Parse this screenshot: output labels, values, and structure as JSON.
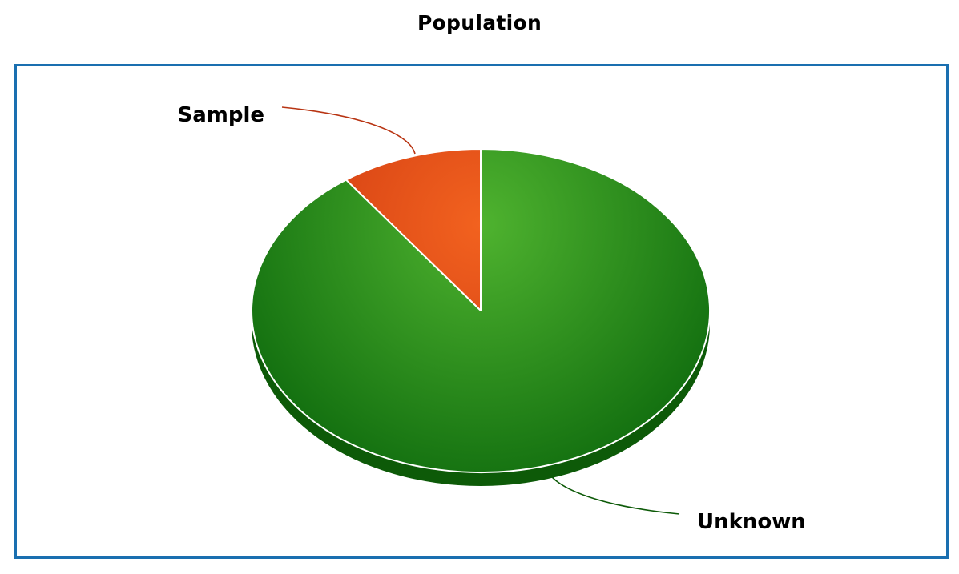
{
  "chart_data": {
    "type": "pie",
    "title": "Population",
    "style": "3d",
    "frame_color": "#1a6fb0",
    "slices": [
      {
        "label": "Sample",
        "value": 10,
        "color": "#e0481a",
        "dark_color": "#b83412"
      },
      {
        "label": "Unknown",
        "value": 90,
        "color": "#2f9a1f",
        "dark_color": "#0d5a08"
      }
    ]
  }
}
